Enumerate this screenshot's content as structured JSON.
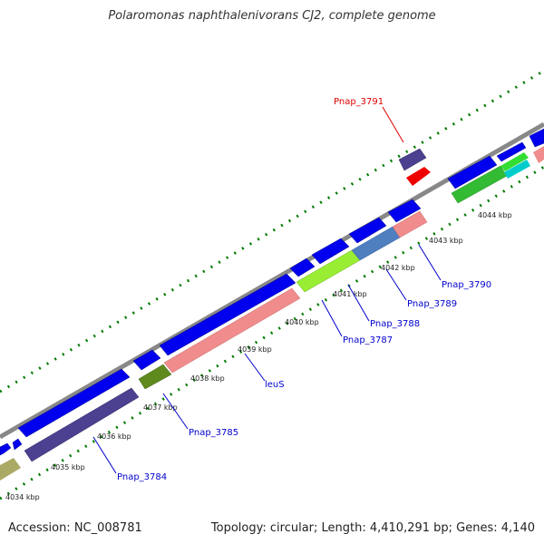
{
  "title": "Polaromonas naphthalenivorans CJ2, complete genome",
  "footer": {
    "accession": "Accession: NC_008781",
    "topology": "Topology: circular; Length: 4,410,291 bp; Genes: 4,140"
  },
  "colors": {
    "backbone": "#888888",
    "forward_gene": "#0000ee",
    "highlight_label": "#dd0000",
    "gene_label": "#0000cc",
    "tick": "#007a00"
  },
  "scale_labels": [
    "4034 kbp",
    "4035 kbp",
    "4036 kbp",
    "4037 kbp",
    "4038 kbp",
    "4039 kbp",
    "4040 kbp",
    "4041 kbp",
    "4042 kbp",
    "4043 kbp",
    "4044 kbp"
  ],
  "gene_labels": [
    {
      "name": "Pnap_3784",
      "highlight": false
    },
    {
      "name": "Pnap_3785",
      "highlight": false
    },
    {
      "name": "leuS",
      "highlight": false
    },
    {
      "name": "Pnap_3787",
      "highlight": false
    },
    {
      "name": "Pnap_3788",
      "highlight": false
    },
    {
      "name": "Pnap_3789",
      "highlight": false
    },
    {
      "name": "Pnap_3790",
      "highlight": false
    },
    {
      "name": "Pnap_3791",
      "highlight": true
    }
  ]
}
